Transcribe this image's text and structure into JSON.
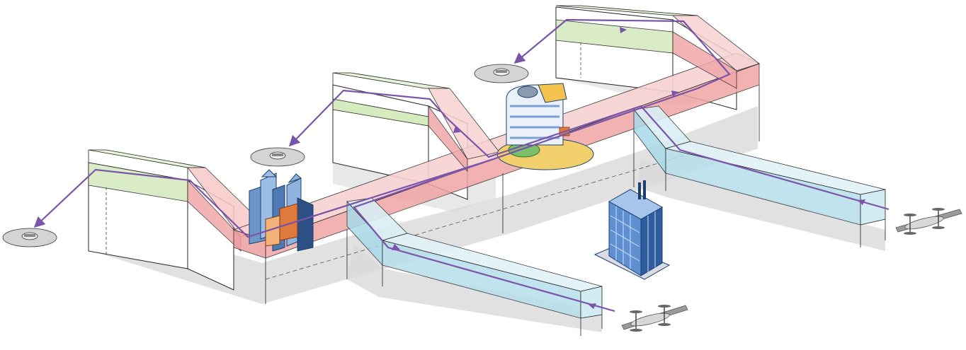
{
  "diagram": {
    "elements": {
      "corridors": [
        "main-corridor",
        "branch-corridor-lower",
        "branch-corridor-upper"
      ],
      "terminals": [
        "left-end",
        "middle-end",
        "right-end"
      ],
      "vertiports": [
        "left-vertipad",
        "middle-vertipad",
        "right-vertipad"
      ],
      "buildings": [
        "downtown-towers",
        "curved-tower-plaza",
        "glass-office-tower"
      ],
      "aircraft": [
        "drone-lower-right",
        "drone-right"
      ]
    },
    "colors": {
      "main_corridor": "#f4b5b5",
      "main_corridor_edge": "#e89a9a",
      "branch_corridor": "#bfe3ee",
      "branch_corridor_edge": "#8ccbe0",
      "terminal_top": "#dff0cf",
      "terminal_band": "#cfe7b6",
      "flight_path": "#7a54a8",
      "ground_shadow": "#d6d6d6",
      "pad": "#cfcfcf",
      "outline": "#222222"
    }
  }
}
